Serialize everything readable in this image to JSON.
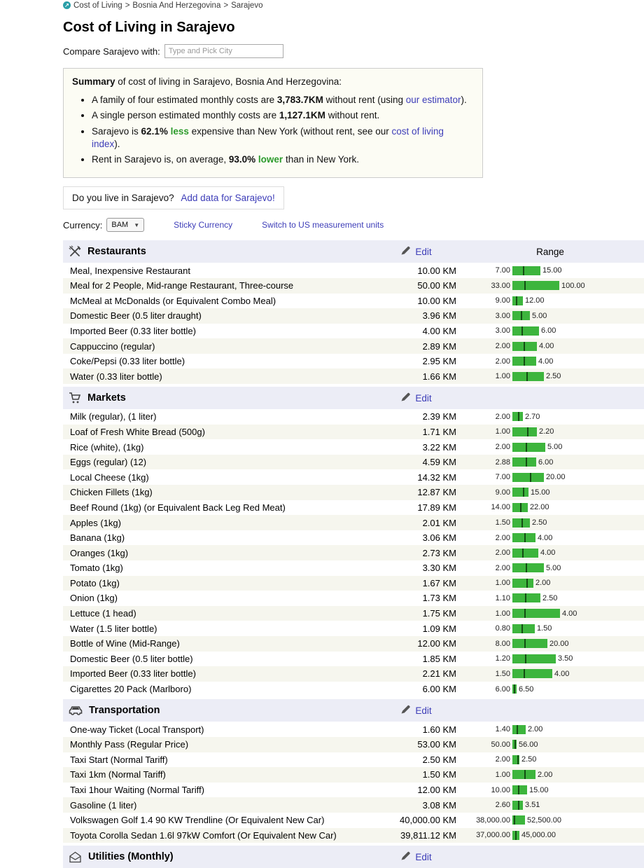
{
  "breadcrumb": {
    "separator": ">",
    "items": [
      "Cost of Living",
      "Bosnia And Herzegovina",
      "Sarajevo"
    ]
  },
  "page": {
    "title": "Cost of Living in Sarajevo"
  },
  "compare": {
    "label": "Compare Sarajevo with:",
    "placeholder": "Type and Pick City"
  },
  "summary": {
    "heading": [
      {
        "t": "Summary",
        "b": true
      },
      {
        "t": " of cost of living in Sarajevo, Bosnia And Herzegovina:"
      }
    ],
    "bullets": [
      [
        {
          "t": "A family of four estimated monthly costs are "
        },
        {
          "t": "3,783.7KM",
          "b": true
        },
        {
          "t": " without rent (using "
        },
        {
          "t": "our estimator",
          "link": true
        },
        {
          "t": ")."
        }
      ],
      [
        {
          "t": "A single person estimated monthly costs are "
        },
        {
          "t": "1,127.1KM",
          "b": true
        },
        {
          "t": " without rent."
        }
      ],
      [
        {
          "t": "Sarajevo is "
        },
        {
          "t": "62.1%",
          "b": true
        },
        {
          "t": " "
        },
        {
          "t": "less",
          "green": true
        },
        {
          "t": " expensive than New York (without rent, see our "
        },
        {
          "t": "cost of living index",
          "link": true
        },
        {
          "t": ")."
        }
      ],
      [
        {
          "t": "Rent in Sarajevo is, on average, "
        },
        {
          "t": "93.0%",
          "b": true
        },
        {
          "t": " "
        },
        {
          "t": "lower",
          "green": true
        },
        {
          "t": " than in New York."
        }
      ]
    ]
  },
  "live_prompt": {
    "question": "Do you live in Sarajevo?",
    "link_label": "Add data for Sarajevo!"
  },
  "currency_bar": {
    "label": "Currency:",
    "selected": "BAM",
    "links": [
      "Sticky Currency",
      "Switch to US measurement units"
    ]
  },
  "table": {
    "edit_label": "Edit",
    "range_header": "Range",
    "bar_color": "#3db53d",
    "bar_marker_color": "#134d13",
    "sections": [
      {
        "icon": "fork-knife-icon",
        "title": "Restaurants",
        "show_range_header": true,
        "rows": [
          {
            "name": "Meal, Inexpensive Restaurant",
            "price": "10.00 KM",
            "min": 7,
            "max": 15,
            "avg": 10,
            "min_label": "7.00",
            "max_label": "15.00"
          },
          {
            "name": "Meal for 2 People, Mid-range Restaurant, Three-course",
            "price": "50.00 KM",
            "min": 33,
            "max": 100,
            "avg": 50,
            "min_label": "33.00",
            "max_label": "100.00"
          },
          {
            "name": "McMeal at McDonalds (or Equivalent Combo Meal)",
            "price": "10.00 KM",
            "min": 9,
            "max": 12,
            "avg": 10,
            "min_label": "9.00",
            "max_label": "12.00"
          },
          {
            "name": "Domestic Beer (0.5 liter draught)",
            "price": "3.96 KM",
            "min": 3,
            "max": 5,
            "avg": 3.96,
            "min_label": "3.00",
            "max_label": "5.00"
          },
          {
            "name": "Imported Beer (0.33 liter bottle)",
            "price": "4.00 KM",
            "min": 3,
            "max": 6,
            "avg": 4,
            "min_label": "3.00",
            "max_label": "6.00"
          },
          {
            "name": "Cappuccino (regular)",
            "price": "2.89 KM",
            "min": 2,
            "max": 4,
            "avg": 2.89,
            "min_label": "2.00",
            "max_label": "4.00"
          },
          {
            "name": "Coke/Pepsi (0.33 liter bottle)",
            "price": "2.95 KM",
            "min": 2,
            "max": 4,
            "avg": 2.95,
            "min_label": "2.00",
            "max_label": "4.00"
          },
          {
            "name": "Water (0.33 liter bottle)",
            "price": "1.66 KM",
            "min": 1,
            "max": 2.5,
            "avg": 1.66,
            "min_label": "1.00",
            "max_label": "2.50"
          }
        ]
      },
      {
        "icon": "cart-icon",
        "title": "Markets",
        "show_range_header": false,
        "rows": [
          {
            "name": "Milk (regular), (1 liter)",
            "price": "2.39 KM",
            "min": 2,
            "max": 2.7,
            "avg": 2.39,
            "min_label": "2.00",
            "max_label": "2.70"
          },
          {
            "name": "Loaf of Fresh White Bread (500g)",
            "price": "1.71 KM",
            "min": 1,
            "max": 2.2,
            "avg": 1.71,
            "min_label": "1.00",
            "max_label": "2.20"
          },
          {
            "name": "Rice (white), (1kg)",
            "price": "3.22 KM",
            "min": 2,
            "max": 5,
            "avg": 3.22,
            "min_label": "2.00",
            "max_label": "5.00"
          },
          {
            "name": "Eggs (regular) (12)",
            "price": "4.59 KM",
            "min": 2.88,
            "max": 6,
            "avg": 4.59,
            "min_label": "2.88",
            "max_label": "6.00"
          },
          {
            "name": "Local Cheese (1kg)",
            "price": "14.32 KM",
            "min": 7,
            "max": 20,
            "avg": 14.32,
            "min_label": "7.00",
            "max_label": "20.00"
          },
          {
            "name": "Chicken Fillets (1kg)",
            "price": "12.87 KM",
            "min": 9,
            "max": 15,
            "avg": 12.87,
            "min_label": "9.00",
            "max_label": "15.00"
          },
          {
            "name": "Beef Round (1kg) (or Equivalent Back Leg Red Meat)",
            "price": "17.89 KM",
            "min": 14,
            "max": 22,
            "avg": 17.89,
            "min_label": "14.00",
            "max_label": "22.00"
          },
          {
            "name": "Apples (1kg)",
            "price": "2.01 KM",
            "min": 1.5,
            "max": 2.5,
            "avg": 2.01,
            "min_label": "1.50",
            "max_label": "2.50"
          },
          {
            "name": "Banana (1kg)",
            "price": "3.06 KM",
            "min": 2,
            "max": 4,
            "avg": 3.06,
            "min_label": "2.00",
            "max_label": "4.00"
          },
          {
            "name": "Oranges (1kg)",
            "price": "2.73 KM",
            "min": 2,
            "max": 4,
            "avg": 2.73,
            "min_label": "2.00",
            "max_label": "4.00"
          },
          {
            "name": "Tomato (1kg)",
            "price": "3.30 KM",
            "min": 2,
            "max": 5,
            "avg": 3.3,
            "min_label": "2.00",
            "max_label": "5.00"
          },
          {
            "name": "Potato (1kg)",
            "price": "1.67 KM",
            "min": 1,
            "max": 2,
            "avg": 1.67,
            "min_label": "1.00",
            "max_label": "2.00"
          },
          {
            "name": "Onion (1kg)",
            "price": "1.73 KM",
            "min": 1.1,
            "max": 2.5,
            "avg": 1.73,
            "min_label": "1.10",
            "max_label": "2.50"
          },
          {
            "name": "Lettuce (1 head)",
            "price": "1.75 KM",
            "min": 1,
            "max": 4,
            "avg": 1.75,
            "min_label": "1.00",
            "max_label": "4.00"
          },
          {
            "name": "Water (1.5 liter bottle)",
            "price": "1.09 KM",
            "min": 0.8,
            "max": 1.5,
            "avg": 1.09,
            "min_label": "0.80",
            "max_label": "1.50"
          },
          {
            "name": "Bottle of Wine (Mid-Range)",
            "price": "12.00 KM",
            "min": 8,
            "max": 20,
            "avg": 12,
            "min_label": "8.00",
            "max_label": "20.00"
          },
          {
            "name": "Domestic Beer (0.5 liter bottle)",
            "price": "1.85 KM",
            "min": 1.2,
            "max": 3.5,
            "avg": 1.85,
            "min_label": "1.20",
            "max_label": "3.50"
          },
          {
            "name": "Imported Beer (0.33 liter bottle)",
            "price": "2.21 KM",
            "min": 1.5,
            "max": 4,
            "avg": 2.21,
            "min_label": "1.50",
            "max_label": "4.00"
          },
          {
            "name": "Cigarettes 20 Pack (Marlboro)",
            "price": "6.00 KM",
            "min": 6,
            "max": 6.5,
            "avg": 6,
            "min_label": "6.00",
            "max_label": "6.50"
          }
        ]
      },
      {
        "icon": "car-icon",
        "title": "Transportation",
        "show_range_header": false,
        "rows": [
          {
            "name": "One-way Ticket (Local Transport)",
            "price": "1.60 KM",
            "min": 1.4,
            "max": 2,
            "avg": 1.6,
            "min_label": "1.40",
            "max_label": "2.00"
          },
          {
            "name": "Monthly Pass (Regular Price)",
            "price": "53.00 KM",
            "min": 50,
            "max": 56,
            "avg": 53,
            "min_label": "50.00",
            "max_label": "56.00"
          },
          {
            "name": "Taxi Start (Normal Tariff)",
            "price": "2.50 KM",
            "min": 2,
            "max": 2.5,
            "avg": 2.5,
            "min_label": "2.00",
            "max_label": "2.50"
          },
          {
            "name": "Taxi 1km (Normal Tariff)",
            "price": "1.50 KM",
            "min": 1,
            "max": 2,
            "avg": 1.5,
            "min_label": "1.00",
            "max_label": "2.00"
          },
          {
            "name": "Taxi 1hour Waiting (Normal Tariff)",
            "price": "12.00 KM",
            "min": 10,
            "max": 15,
            "avg": 12,
            "min_label": "10.00",
            "max_label": "15.00"
          },
          {
            "name": "Gasoline (1 liter)",
            "price": "3.08 KM",
            "min": 2.6,
            "max": 3.51,
            "avg": 3.08,
            "min_label": "2.60",
            "max_label": "3.51"
          },
          {
            "name": "Volkswagen Golf 1.4 90 KW Trendline (Or Equivalent New Car)",
            "price": "40,000.00 KM",
            "min": 38000,
            "max": 52500,
            "avg": 40000,
            "min_label": "38,000.00",
            "max_label": "52,500.00"
          },
          {
            "name": "Toyota Corolla Sedan 1.6l 97kW Comfort (Or Equivalent New Car)",
            "price": "39,811.12 KM",
            "min": 37000,
            "max": 45000,
            "avg": 39811.12,
            "min_label": "37,000.00",
            "max_label": "45,000.00"
          }
        ]
      },
      {
        "icon": "utilities-icon",
        "title": "Utilities (Monthly)",
        "show_range_header": false,
        "rows": []
      }
    ]
  }
}
